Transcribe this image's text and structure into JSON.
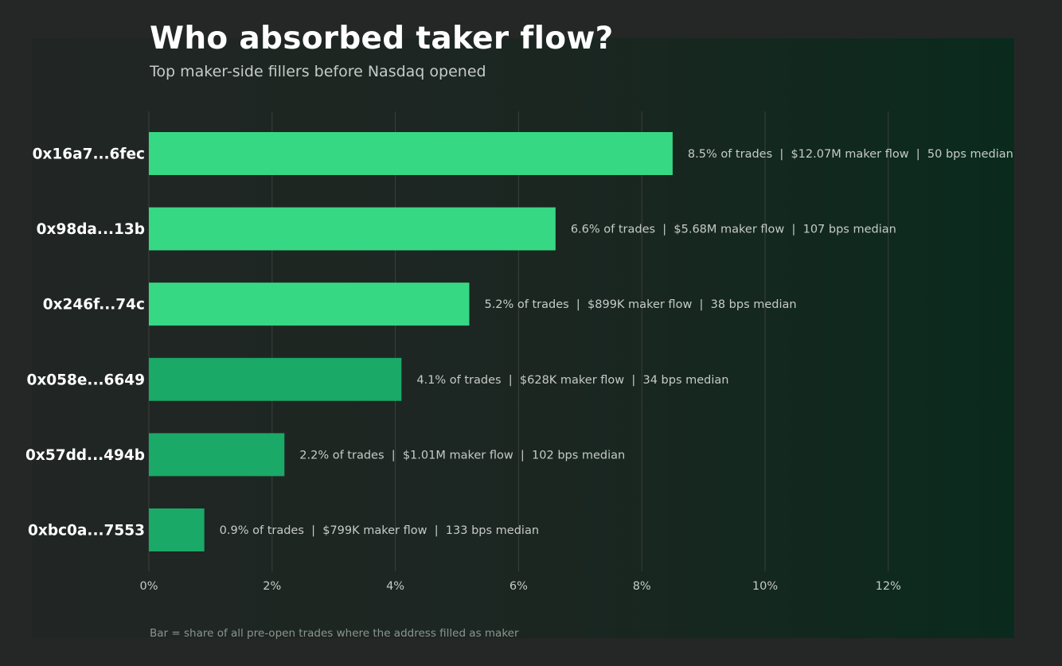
{
  "title": "Who absorbed taker flow?",
  "subtitle": "Top maker-side fillers before Nasdaq opened",
  "footnote": "Bar = share of all pre-open trades where the address filled as maker",
  "colors": {
    "bar_bright": "#37d884",
    "bar_dim": "#1aa967",
    "gridline": "#3a403d",
    "label": "#c6cbc8",
    "category": "#ffffff",
    "tick": "#c6cbc8"
  },
  "chart_data": {
    "type": "bar",
    "orientation": "horizontal",
    "title": "Who absorbed taker flow?",
    "subtitle": "Top maker-side fillers before Nasdaq opened",
    "xlabel": "",
    "ylabel": "",
    "xlim": [
      0,
      14
    ],
    "x_ticks": [
      0,
      2,
      4,
      6,
      8,
      10,
      12
    ],
    "x_tick_labels": [
      "0%",
      "2%",
      "4%",
      "6%",
      "8%",
      "10%",
      "12%"
    ],
    "grid": "vertical",
    "categories": [
      "0x16a7...6fec",
      "0x98da...13b",
      "0x246f...74c",
      "0x058e...6649",
      "0x57dd...494b",
      "0xbc0a...7553"
    ],
    "values": [
      8.5,
      6.6,
      5.2,
      4.1,
      2.2,
      0.9
    ],
    "bar_shade": [
      "bright",
      "bright",
      "bright",
      "dim",
      "dim",
      "dim"
    ],
    "data_labels": [
      "8.5% of trades  |  $12.07M maker flow  |  50 bps median",
      "6.6% of trades  |  $5.68M maker flow  |  107 bps median",
      "5.2% of trades  |  $899K maker flow  |  38 bps median",
      "4.1% of trades  |  $628K maker flow  |  34 bps median",
      "2.2% of trades  |  $1.01M maker flow  |  102 bps median",
      "0.9% of trades  |  $799K maker flow  |  133 bps median"
    ]
  }
}
